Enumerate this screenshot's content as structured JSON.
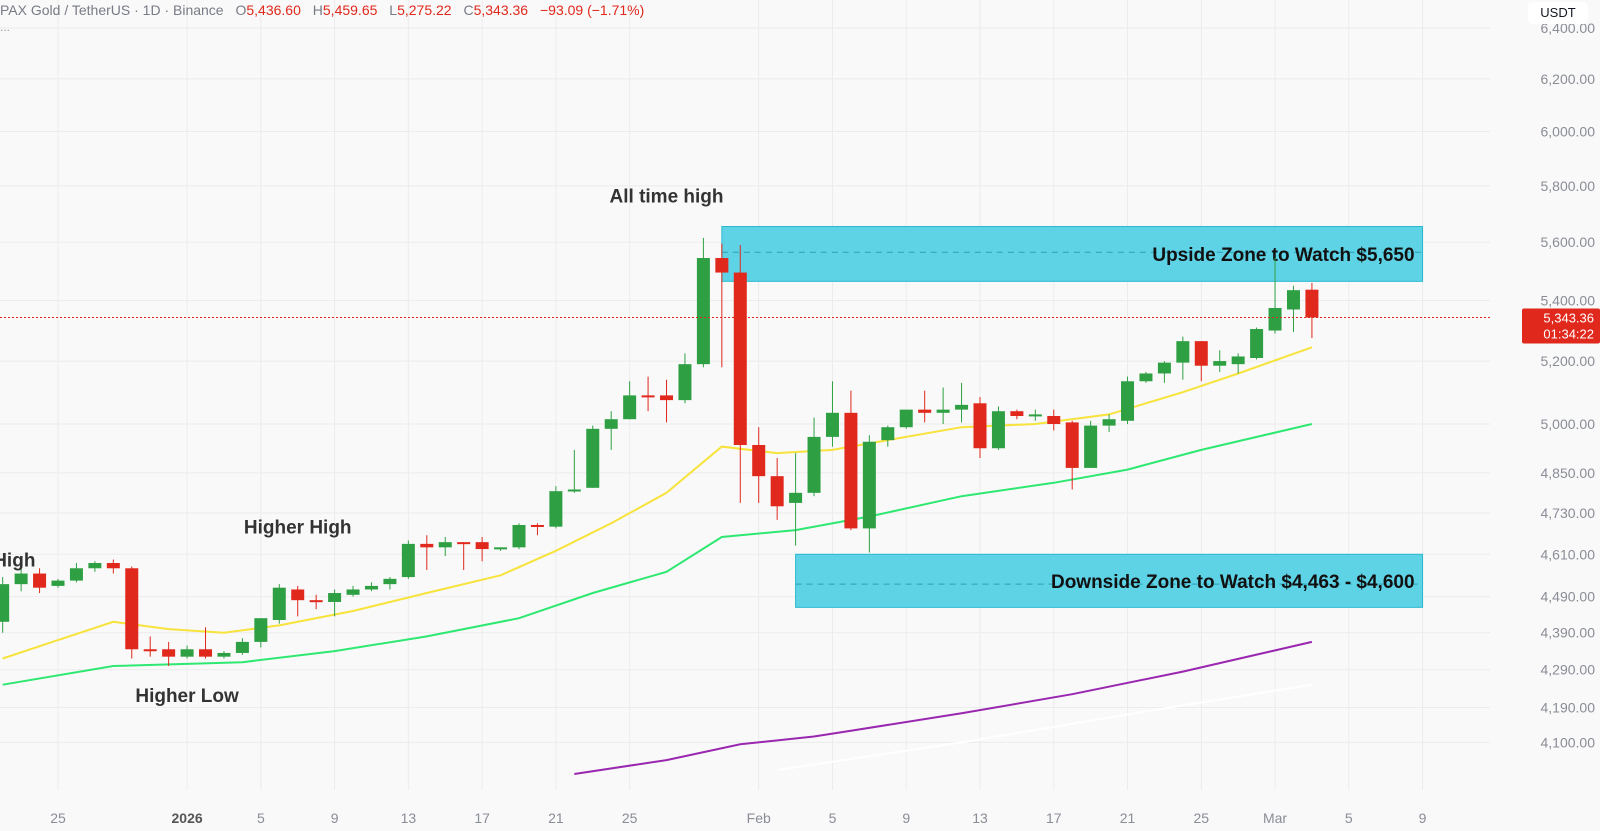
{
  "header": {
    "symbol": "PAX Gold / TetherUS · 1D · Binance",
    "o_label": "O",
    "o_value": "5,436.60",
    "h_label": "H",
    "h_value": "5,459.65",
    "l_label": "L",
    "l_value": "5,275.22",
    "c_label": "C",
    "c_value": "5,343.36",
    "change": "−93.09 (−1.71%)",
    "more": "...",
    "currency": "USDT"
  },
  "colors": {
    "up": "#2ea043",
    "down": "#e0281c",
    "zone": "#5fd3e6",
    "ema20": "#f7e33c",
    "ema50": "#2ee872",
    "ema100": "#9a27b0",
    "ema200": "#ffffff",
    "price_line": "#e0281c"
  },
  "chart_data": {
    "type": "candlestick",
    "x_ticks": [
      {
        "label": "25",
        "date": "2025-12-25"
      },
      {
        "label": "2026",
        "date": "2026-01-01",
        "bold": true
      },
      {
        "label": "5",
        "date": "2026-01-05"
      },
      {
        "label": "9",
        "date": "2026-01-09"
      },
      {
        "label": "13",
        "date": "2026-01-13"
      },
      {
        "label": "17",
        "date": "2026-01-17"
      },
      {
        "label": "21",
        "date": "2026-01-21"
      },
      {
        "label": "25",
        "date": "2026-01-25"
      },
      {
        "label": "Feb",
        "date": "2026-02-01"
      },
      {
        "label": "5",
        "date": "2026-02-05"
      },
      {
        "label": "9",
        "date": "2026-02-09"
      },
      {
        "label": "13",
        "date": "2026-02-13"
      },
      {
        "label": "17",
        "date": "2026-02-17"
      },
      {
        "label": "21",
        "date": "2026-02-21"
      },
      {
        "label": "25",
        "date": "2026-02-25"
      },
      {
        "label": "Mar",
        "date": "2026-03-01"
      },
      {
        "label": "5",
        "date": "2026-03-05"
      },
      {
        "label": "9",
        "date": "2026-03-09"
      }
    ],
    "y_ticks": [
      "6,400.00",
      "6,200.00",
      "6,000.00",
      "5,800.00",
      "5,600.00",
      "5,400.00",
      "5,200.00",
      "5,000.00",
      "4,850.00",
      "4,730.00",
      "4,610.00",
      "4,490.00",
      "4,390.00",
      "4,290.00",
      "4,190.00",
      "4,100.00"
    ],
    "y_tick_values": [
      6400,
      6200,
      6000,
      5800,
      5600,
      5400,
      5200,
      5000,
      4850,
      4730,
      4610,
      4490,
      4390,
      4290,
      4190,
      4100
    ],
    "y_range": [
      4030,
      6460
    ],
    "log_scale": true,
    "grid": true,
    "last_price": "5,343.36",
    "countdown": "01:34:22",
    "last_price_value": 5343.36,
    "candles": [
      {
        "date": "2025-12-22",
        "o": 4420,
        "h": 4545,
        "l": 4390,
        "c": 4525
      },
      {
        "date": "2025-12-23",
        "o": 4525,
        "h": 4575,
        "l": 4505,
        "c": 4555
      },
      {
        "date": "2025-12-24",
        "o": 4555,
        "h": 4570,
        "l": 4500,
        "c": 4515
      },
      {
        "date": "2025-12-25",
        "o": 4520,
        "h": 4540,
        "l": 4515,
        "c": 4535
      },
      {
        "date": "2025-12-26",
        "o": 4535,
        "h": 4585,
        "l": 4530,
        "c": 4570
      },
      {
        "date": "2025-12-27",
        "o": 4570,
        "h": 4590,
        "l": 4560,
        "c": 4585
      },
      {
        "date": "2025-12-28",
        "o": 4585,
        "h": 4595,
        "l": 4555,
        "c": 4570
      },
      {
        "date": "2025-12-29",
        "o": 4570,
        "h": 4575,
        "l": 4320,
        "c": 4345
      },
      {
        "date": "2025-12-30",
        "o": 4345,
        "h": 4380,
        "l": 4325,
        "c": 4340
      },
      {
        "date": "2025-12-31",
        "o": 4345,
        "h": 4365,
        "l": 4300,
        "c": 4325
      },
      {
        "date": "2026-01-01",
        "o": 4325,
        "h": 4355,
        "l": 4320,
        "c": 4345
      },
      {
        "date": "2026-01-02",
        "o": 4345,
        "h": 4405,
        "l": 4320,
        "c": 4325
      },
      {
        "date": "2026-01-03",
        "o": 4325,
        "h": 4340,
        "l": 4320,
        "c": 4335
      },
      {
        "date": "2026-01-04",
        "o": 4335,
        "h": 4375,
        "l": 4330,
        "c": 4365
      },
      {
        "date": "2026-01-05",
        "o": 4365,
        "h": 4420,
        "l": 4350,
        "c": 4430
      },
      {
        "date": "2026-01-06",
        "o": 4425,
        "h": 4525,
        "l": 4415,
        "c": 4515
      },
      {
        "date": "2026-01-07",
        "o": 4510,
        "h": 4520,
        "l": 4435,
        "c": 4480
      },
      {
        "date": "2026-01-08",
        "o": 4480,
        "h": 4495,
        "l": 4455,
        "c": 4475
      },
      {
        "date": "2026-01-09",
        "o": 4475,
        "h": 4510,
        "l": 4435,
        "c": 4500
      },
      {
        "date": "2026-01-10",
        "o": 4495,
        "h": 4520,
        "l": 4490,
        "c": 4510
      },
      {
        "date": "2026-01-11",
        "o": 4510,
        "h": 4530,
        "l": 4505,
        "c": 4520
      },
      {
        "date": "2026-01-12",
        "o": 4525,
        "h": 4545,
        "l": 4510,
        "c": 4540
      },
      {
        "date": "2026-01-13",
        "o": 4545,
        "h": 4650,
        "l": 4540,
        "c": 4640
      },
      {
        "date": "2026-01-14",
        "o": 4640,
        "h": 4665,
        "l": 4565,
        "c": 4630
      },
      {
        "date": "2026-01-15",
        "o": 4630,
        "h": 4660,
        "l": 4605,
        "c": 4645
      },
      {
        "date": "2026-01-16",
        "o": 4645,
        "h": 4645,
        "l": 4565,
        "c": 4640
      },
      {
        "date": "2026-01-17",
        "o": 4645,
        "h": 4660,
        "l": 4590,
        "c": 4625
      },
      {
        "date": "2026-01-18",
        "o": 4625,
        "h": 4630,
        "l": 4620,
        "c": 4630
      },
      {
        "date": "2026-01-19",
        "o": 4630,
        "h": 4700,
        "l": 4625,
        "c": 4695
      },
      {
        "date": "2026-01-20",
        "o": 4695,
        "h": 4700,
        "l": 4665,
        "c": 4690
      },
      {
        "date": "2026-01-21",
        "o": 4690,
        "h": 4810,
        "l": 4685,
        "c": 4795
      },
      {
        "date": "2026-01-22",
        "o": 4795,
        "h": 4920,
        "l": 4790,
        "c": 4800
      },
      {
        "date": "2026-01-23",
        "o": 4805,
        "h": 4995,
        "l": 4805,
        "c": 4985
      },
      {
        "date": "2026-01-24",
        "o": 4985,
        "h": 5040,
        "l": 4920,
        "c": 5015
      },
      {
        "date": "2026-01-25",
        "o": 5015,
        "h": 5135,
        "l": 5015,
        "c": 5090
      },
      {
        "date": "2026-01-26",
        "o": 5090,
        "h": 5150,
        "l": 5040,
        "c": 5085
      },
      {
        "date": "2026-01-27",
        "o": 5090,
        "h": 5140,
        "l": 5005,
        "c": 5075
      },
      {
        "date": "2026-01-28",
        "o": 5075,
        "h": 5225,
        "l": 5065,
        "c": 5190
      },
      {
        "date": "2026-01-29",
        "o": 5190,
        "h": 5615,
        "l": 5180,
        "c": 5545
      },
      {
        "date": "2026-01-30",
        "o": 5545,
        "h": 5595,
        "l": 5180,
        "c": 5495
      },
      {
        "date": "2026-01-31",
        "o": 5495,
        "h": 5590,
        "l": 4760,
        "c": 4935
      },
      {
        "date": "2026-02-01",
        "o": 4935,
        "h": 4990,
        "l": 4760,
        "c": 4840
      },
      {
        "date": "2026-02-02",
        "o": 4840,
        "h": 4895,
        "l": 4710,
        "c": 4750
      },
      {
        "date": "2026-02-03",
        "o": 4760,
        "h": 4910,
        "l": 4635,
        "c": 4790
      },
      {
        "date": "2026-02-04",
        "o": 4790,
        "h": 5020,
        "l": 4780,
        "c": 4960
      },
      {
        "date": "2026-02-05",
        "o": 4960,
        "h": 5135,
        "l": 4930,
        "c": 5035
      },
      {
        "date": "2026-02-06",
        "o": 5035,
        "h": 5105,
        "l": 4680,
        "c": 4685
      },
      {
        "date": "2026-02-07",
        "o": 4685,
        "h": 4965,
        "l": 4615,
        "c": 4945
      },
      {
        "date": "2026-02-08",
        "o": 4950,
        "h": 4995,
        "l": 4930,
        "c": 4990
      },
      {
        "date": "2026-02-09",
        "o": 4990,
        "h": 5040,
        "l": 4985,
        "c": 5045
      },
      {
        "date": "2026-02-10",
        "o": 5045,
        "h": 5105,
        "l": 5005,
        "c": 5035
      },
      {
        "date": "2026-02-11",
        "o": 5035,
        "h": 5115,
        "l": 5000,
        "c": 5045
      },
      {
        "date": "2026-02-12",
        "o": 5045,
        "h": 5130,
        "l": 5005,
        "c": 5060
      },
      {
        "date": "2026-02-13",
        "o": 5065,
        "h": 5085,
        "l": 4895,
        "c": 4925
      },
      {
        "date": "2026-02-14",
        "o": 4925,
        "h": 5055,
        "l": 4920,
        "c": 5040
      },
      {
        "date": "2026-02-15",
        "o": 5040,
        "h": 5045,
        "l": 5015,
        "c": 5025
      },
      {
        "date": "2026-02-16",
        "o": 5025,
        "h": 5045,
        "l": 5010,
        "c": 5030
      },
      {
        "date": "2026-02-17",
        "o": 5025,
        "h": 5045,
        "l": 4980,
        "c": 5000
      },
      {
        "date": "2026-02-18",
        "o": 5005,
        "h": 5010,
        "l": 4800,
        "c": 4865
      },
      {
        "date": "2026-02-19",
        "o": 4865,
        "h": 5010,
        "l": 4865,
        "c": 4995
      },
      {
        "date": "2026-02-20",
        "o": 4995,
        "h": 5030,
        "l": 4975,
        "c": 5015
      },
      {
        "date": "2026-02-21",
        "o": 5010,
        "h": 5150,
        "l": 5000,
        "c": 5135
      },
      {
        "date": "2026-02-22",
        "o": 5135,
        "h": 5165,
        "l": 5130,
        "c": 5160
      },
      {
        "date": "2026-02-23",
        "o": 5160,
        "h": 5200,
        "l": 5130,
        "c": 5195
      },
      {
        "date": "2026-02-24",
        "o": 5195,
        "h": 5280,
        "l": 5140,
        "c": 5265
      },
      {
        "date": "2026-02-25",
        "o": 5265,
        "h": 5265,
        "l": 5135,
        "c": 5185
      },
      {
        "date": "2026-02-26",
        "o": 5185,
        "h": 5235,
        "l": 5165,
        "c": 5200
      },
      {
        "date": "2026-02-27",
        "o": 5190,
        "h": 5225,
        "l": 5160,
        "c": 5215
      },
      {
        "date": "2026-02-28",
        "o": 5210,
        "h": 5310,
        "l": 5205,
        "c": 5305
      },
      {
        "date": "2026-03-01",
        "o": 5300,
        "h": 5545,
        "l": 5290,
        "c": 5375
      },
      {
        "date": "2026-03-02",
        "o": 5370,
        "h": 5450,
        "l": 5295,
        "c": 5435
      },
      {
        "date": "2026-03-03",
        "o": 5436.6,
        "h": 5459.65,
        "l": 5275.22,
        "c": 5343.36
      }
    ],
    "ema_lines": [
      {
        "name": "ema-yellow",
        "color": "#f7e33c",
        "points": [
          [
            "2025-12-22",
            4320
          ],
          [
            "2025-12-25",
            4370
          ],
          [
            "2025-12-28",
            4420
          ],
          [
            "2025-12-31",
            4400
          ],
          [
            "2026-01-03",
            4390
          ],
          [
            "2026-01-06",
            4410
          ],
          [
            "2026-01-10",
            4450
          ],
          [
            "2026-01-14",
            4500
          ],
          [
            "2026-01-18",
            4550
          ],
          [
            "2026-01-21",
            4620
          ],
          [
            "2026-01-24",
            4700
          ],
          [
            "2026-01-27",
            4790
          ],
          [
            "2026-01-30",
            4930
          ],
          [
            "2026-02-02",
            4910
          ],
          [
            "2026-02-05",
            4920
          ],
          [
            "2026-02-08",
            4950
          ],
          [
            "2026-02-12",
            4990
          ],
          [
            "2026-02-16",
            5000
          ],
          [
            "2026-02-20",
            5030
          ],
          [
            "2026-02-24",
            5100
          ],
          [
            "2026-02-27",
            5160
          ],
          [
            "2026-03-03",
            5245
          ]
        ]
      },
      {
        "name": "ema-green",
        "color": "#2ee872",
        "points": [
          [
            "2025-12-22",
            4250
          ],
          [
            "2025-12-28",
            4300
          ],
          [
            "2026-01-04",
            4310
          ],
          [
            "2026-01-09",
            4340
          ],
          [
            "2026-01-14",
            4380
          ],
          [
            "2026-01-19",
            4430
          ],
          [
            "2026-01-23",
            4500
          ],
          [
            "2026-01-27",
            4560
          ],
          [
            "2026-01-30",
            4660
          ],
          [
            "2026-02-03",
            4680
          ],
          [
            "2026-02-07",
            4720
          ],
          [
            "2026-02-12",
            4780
          ],
          [
            "2026-02-17",
            4820
          ],
          [
            "2026-02-21",
            4860
          ],
          [
            "2026-02-25",
            4920
          ],
          [
            "2026-03-03",
            5000
          ]
        ]
      },
      {
        "name": "ema-purple",
        "color": "#9a27b0",
        "points": [
          [
            "2026-01-22",
            4020
          ],
          [
            "2026-01-27",
            4055
          ],
          [
            "2026-01-31",
            4095
          ],
          [
            "2026-02-04",
            4115
          ],
          [
            "2026-02-06",
            4130
          ],
          [
            "2026-02-12",
            4175
          ],
          [
            "2026-02-18",
            4225
          ],
          [
            "2026-02-24",
            4285
          ],
          [
            "2026-03-03",
            4365
          ]
        ]
      },
      {
        "name": "ema-white",
        "color": "#ffffff",
        "points": [
          [
            "2026-02-02",
            4030
          ],
          [
            "2026-02-12",
            4100
          ],
          [
            "2026-02-22",
            4180
          ],
          [
            "2026-03-03",
            4250
          ]
        ]
      }
    ],
    "zones": [
      {
        "name": "upside-zone",
        "label": "Upside Zone to Watch $5,650",
        "start": "2026-01-30",
        "end": "2026-03-09",
        "top": 5655,
        "bottom": 5465,
        "mid": 5565
      },
      {
        "name": "downside-zone",
        "label": "Downside Zone to Watch $4,463 - $4,600",
        "start": "2026-02-03",
        "end": "2026-03-09",
        "top": 4610,
        "bottom": 4460,
        "mid": 4525
      }
    ],
    "annotations": [
      {
        "name": "all-time-high-label",
        "text": "All time high",
        "date": "2026-01-27",
        "price": 5740
      },
      {
        "name": "higher-high-label",
        "text": "Higher High",
        "date": "2026-01-07",
        "price": 4670
      },
      {
        "name": "higher-low-label",
        "text": "Higher Low",
        "date": "2026-01-01",
        "price": 4205
      },
      {
        "name": "prior-high-label",
        "text": "er High",
        "date": "2025-12-22",
        "price": 4575
      }
    ]
  }
}
